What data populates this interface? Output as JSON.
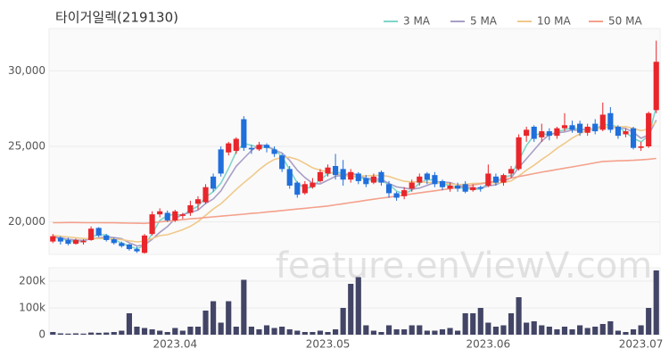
{
  "chart_data": {
    "type": "candlestick",
    "title": "타이거일렉(219130)",
    "watermark": "feature.enViewV.com",
    "categories": [
      null,
      null,
      null,
      null,
      null,
      null,
      null,
      null,
      null,
      null,
      null,
      null,
      null,
      null,
      null,
      null,
      "2023.04",
      null,
      null,
      null,
      null,
      null,
      null,
      null,
      null,
      null,
      null,
      null,
      null,
      null,
      null,
      null,
      null,
      null,
      null,
      null,
      "2023.05",
      null,
      null,
      null,
      null,
      null,
      null,
      null,
      null,
      null,
      null,
      null,
      null,
      null,
      null,
      null,
      null,
      null,
      null,
      null,
      null,
      "2023.06",
      null,
      null,
      null,
      null,
      null,
      null,
      null,
      null,
      null,
      null,
      null,
      null,
      null,
      null,
      null,
      null,
      null,
      null,
      null,
      "2023.07",
      null,
      null
    ],
    "up_color": "#e8262b",
    "down_color": "#1f6fdc",
    "open": [
      18700,
      18950,
      18800,
      18550,
      18650,
      18800,
      19600,
      19100,
      18850,
      18600,
      18500,
      18200,
      17950,
      19200,
      20500,
      20600,
      20100,
      20400,
      20600,
      21200,
      21300,
      23000,
      24800,
      24600,
      24700,
      26800,
      24900,
      24800,
      25100,
      24800,
      24400,
      23500,
      22600,
      21900,
      22300,
      22700,
      23200,
      23700,
      23500,
      22800,
      23200,
      22900,
      22600,
      23300,
      22500,
      21900,
      21700,
      22200,
      22600,
      23200,
      23100,
      22700,
      22200,
      22400,
      22500,
      22100,
      22300,
      22400,
      23000,
      22600,
      23200,
      23500,
      25700,
      26300,
      25600,
      26000,
      25700,
      26200,
      26400,
      26500,
      25900,
      26500,
      26100,
      27200,
      26300,
      25800,
      26200,
      24900,
      25000,
      27400
    ],
    "high": [
      19200,
      19050,
      18950,
      18900,
      18850,
      19700,
      19650,
      19200,
      18950,
      18700,
      18550,
      18350,
      19200,
      20700,
      20900,
      20750,
      20800,
      20600,
      21400,
      21700,
      22500,
      23200,
      25000,
      25300,
      25600,
      27000,
      25100,
      25300,
      25200,
      25000,
      24500,
      23700,
      22700,
      22700,
      22900,
      23500,
      23800,
      24500,
      24100,
      23500,
      23300,
      23100,
      23200,
      23400,
      22700,
      22000,
      22300,
      22800,
      23200,
      23300,
      23300,
      22800,
      22600,
      22600,
      22700,
      22500,
      22400,
      23800,
      23200,
      23200,
      23700,
      25800,
      26300,
      26400,
      26500,
      26200,
      26300,
      27200,
      26700,
      26700,
      26500,
      26800,
      27900,
      27600,
      26400,
      26200,
      26300,
      25300,
      27300,
      32000
    ],
    "low": [
      18600,
      18500,
      18450,
      18500,
      18500,
      18750,
      19000,
      18700,
      18500,
      18300,
      18100,
      17950,
      17900,
      19100,
      20300,
      20000,
      20000,
      20200,
      20400,
      20800,
      21200,
      22000,
      23000,
      24400,
      24500,
      24700,
      24500,
      24700,
      24600,
      24300,
      23300,
      22200,
      21600,
      21800,
      22200,
      22600,
      23000,
      22800,
      22400,
      22600,
      22500,
      22300,
      22500,
      22400,
      21600,
      21400,
      21500,
      22000,
      22400,
      22500,
      22300,
      22100,
      22000,
      22000,
      21900,
      22000,
      22000,
      22300,
      22400,
      22400,
      22900,
      23400,
      25300,
      25300,
      25300,
      25400,
      25500,
      26000,
      25900,
      25700,
      25700,
      25800,
      26000,
      25900,
      25500,
      25600,
      24800,
      24700,
      24900,
      27200
    ],
    "close": [
      19050,
      18700,
      18550,
      18800,
      18750,
      19550,
      19100,
      18800,
      18600,
      18400,
      18200,
      18050,
      19100,
      20500,
      20700,
      20100,
      20700,
      20500,
      21100,
      21500,
      22300,
      22200,
      23200,
      25200,
      25500,
      24900,
      24800,
      25100,
      24900,
      24500,
      23500,
      22400,
      21800,
      22500,
      22600,
      23300,
      23600,
      23100,
      22800,
      23300,
      22700,
      22500,
      23000,
      22600,
      21900,
      21600,
      22100,
      22600,
      23000,
      22800,
      22500,
      22300,
      22400,
      22200,
      22000,
      22300,
      22200,
      23200,
      22600,
      23100,
      23500,
      25600,
      26100,
      25500,
      26000,
      25700,
      26200,
      26400,
      26100,
      25900,
      26300,
      26000,
      27100,
      26100,
      25700,
      26000,
      24900,
      25000,
      27200,
      30600
    ],
    "ylim": [
      17850,
      32800
    ],
    "yticks": [
      {
        "value": 20000,
        "label": "20,000"
      },
      {
        "value": 25000,
        "label": "25,000"
      },
      {
        "value": 30000,
        "label": "30,000"
      }
    ],
    "grid": true,
    "legend": "top-right",
    "series": [
      {
        "name": "3 MA",
        "color": "#7fd6c9",
        "values": [
          19000,
          18900,
          18767,
          18683,
          18700,
          19033,
          19133,
          19150,
          18833,
          18600,
          18400,
          18217,
          18450,
          19217,
          20100,
          20433,
          20500,
          20433,
          20767,
          21033,
          21633,
          22000,
          22567,
          23533,
          24633,
          25200,
          25067,
          24933,
          24933,
          24833,
          24300,
          23467,
          22567,
          22233,
          22300,
          22800,
          23167,
          23333,
          23167,
          23067,
          22933,
          22833,
          22733,
          22700,
          22500,
          22033,
          21867,
          22100,
          22567,
          22800,
          22767,
          22533,
          22400,
          22300,
          22200,
          22167,
          22167,
          22567,
          22667,
          22967,
          23067,
          24067,
          25067,
          25733,
          25867,
          25733,
          25967,
          26100,
          26233,
          26133,
          26100,
          26067,
          26467,
          26400,
          26300,
          25933,
          25533,
          25300,
          25700,
          27600
        ]
      },
      {
        "name": "5 MA",
        "color": "#a99ec6",
        "values": [
          19000,
          18950,
          18850,
          18800,
          18770,
          18870,
          18950,
          19000,
          18960,
          18890,
          18620,
          18410,
          18470,
          18850,
          19310,
          19690,
          20220,
          20500,
          20620,
          20780,
          21220,
          21520,
          22060,
          22880,
          23680,
          24200,
          24720,
          25100,
          25040,
          24760,
          24560,
          24080,
          23420,
          22940,
          22560,
          22520,
          22760,
          23020,
          23080,
          23220,
          23100,
          22880,
          22860,
          22820,
          22540,
          22320,
          22240,
          22160,
          22240,
          22420,
          22600,
          22640,
          22600,
          22440,
          22280,
          22240,
          22220,
          22380,
          22460,
          22680,
          22920,
          23600,
          24180,
          24760,
          25340,
          25780,
          25900,
          25960,
          26080,
          26060,
          26180,
          26140,
          26280,
          26280,
          26240,
          26180,
          25940,
          25540,
          25760,
          26740
        ]
      },
      {
        "name": "10 MA",
        "color": "#f0c98a",
        "values": [
          19100,
          19050,
          19000,
          18950,
          18900,
          18880,
          18900,
          18880,
          18860,
          18830,
          18750,
          18680,
          18720,
          18900,
          19090,
          19150,
          19310,
          19480,
          19710,
          20020,
          20430,
          20850,
          21200,
          21670,
          22150,
          22590,
          23000,
          23460,
          23840,
          24140,
          24260,
          24280,
          24140,
          23870,
          23580,
          23420,
          23310,
          23180,
          23070,
          23020,
          23040,
          23050,
          23070,
          23080,
          23010,
          22840,
          22690,
          22640,
          22660,
          22610,
          22590,
          22570,
          22510,
          22470,
          22480,
          22550,
          22560,
          22620,
          22580,
          22610,
          22710,
          23040,
          23420,
          23750,
          24130,
          24470,
          24870,
          25200,
          25550,
          25830,
          26110,
          26150,
          26250,
          26310,
          26280,
          26310,
          26180,
          26040,
          26150,
          26620
        ]
      },
      {
        "name": "50 MA",
        "color": "#f4a18c",
        "values": [
          19950,
          19950,
          19960,
          19960,
          19950,
          19950,
          19950,
          19940,
          19940,
          19930,
          19920,
          19910,
          19900,
          19950,
          20000,
          20050,
          20100,
          20150,
          20200,
          20240,
          20290,
          20330,
          20380,
          20420,
          20470,
          20510,
          20560,
          20600,
          20650,
          20700,
          20750,
          20800,
          20850,
          20900,
          20950,
          21000,
          21050,
          21130,
          21200,
          21280,
          21350,
          21430,
          21500,
          21570,
          21640,
          21710,
          21780,
          21850,
          21920,
          21990,
          22060,
          22130,
          22200,
          22280,
          22360,
          22440,
          22520,
          22600,
          22700,
          22800,
          22900,
          23000,
          23100,
          23200,
          23290,
          23380,
          23470,
          23560,
          23640,
          23730,
          23820,
          23910,
          24000,
          24020,
          24040,
          24060,
          24080,
          24110,
          24150,
          24200
        ]
      }
    ],
    "volume": {
      "color": "#434566",
      "values": [
        10000,
        5000,
        4000,
        5000,
        4000,
        8000,
        7000,
        8000,
        10000,
        15000,
        80000,
        30000,
        25000,
        20000,
        15000,
        10000,
        25000,
        15000,
        30000,
        30000,
        90000,
        125000,
        45000,
        125000,
        30000,
        205000,
        30000,
        20000,
        35000,
        25000,
        30000,
        20000,
        15000,
        10000,
        10000,
        15000,
        10000,
        20000,
        100000,
        190000,
        215000,
        35000,
        15000,
        10000,
        35000,
        20000,
        20000,
        35000,
        35000,
        15000,
        15000,
        20000,
        25000,
        15000,
        80000,
        80000,
        100000,
        45000,
        30000,
        35000,
        80000,
        140000,
        45000,
        50000,
        35000,
        30000,
        20000,
        30000,
        20000,
        35000,
        25000,
        30000,
        40000,
        50000,
        15000,
        10000,
        20000,
        35000,
        100000,
        240000
      ],
      "ylim": [
        0,
        250000
      ],
      "yticks": [
        0,
        {
          "value": 100000,
          "label": "100k"
        },
        {
          "value": 200000,
          "label": "200k"
        }
      ]
    }
  }
}
